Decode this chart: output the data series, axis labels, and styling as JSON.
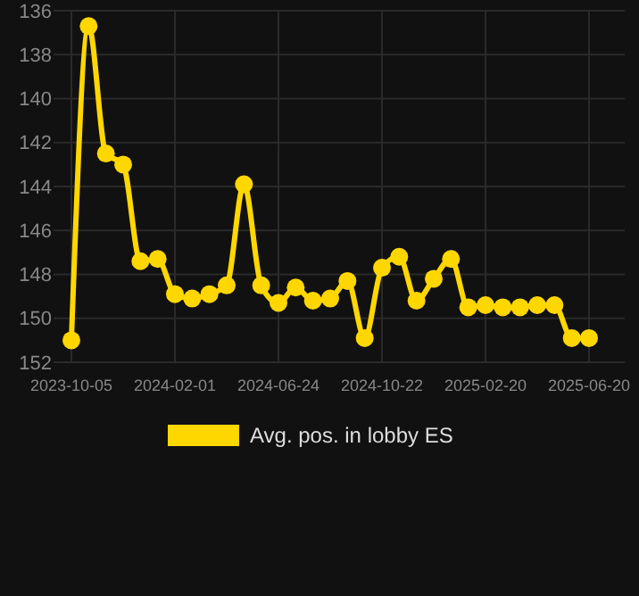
{
  "chart_data": {
    "type": "line",
    "categories": [
      "2023-10-05",
      null,
      null,
      null,
      null,
      null,
      "2024-02-01",
      null,
      null,
      null,
      null,
      null,
      "2024-06-24",
      null,
      null,
      null,
      null,
      null,
      "2024-10-22",
      null,
      null,
      null,
      null,
      null,
      "2025-02-20",
      null,
      null,
      null,
      null,
      null,
      "2025-06-20"
    ],
    "series": [
      {
        "name": "Avg. pos. in lobby ES",
        "color": "#ffd700",
        "values": [
          151.0,
          136.7,
          142.5,
          143.0,
          147.4,
          147.3,
          148.9,
          149.1,
          148.9,
          148.5,
          143.9,
          148.5,
          149.3,
          148.6,
          149.2,
          149.1,
          148.3,
          150.9,
          147.7,
          147.2,
          149.2,
          148.2,
          147.3,
          149.5,
          149.4,
          149.5,
          149.5,
          149.4,
          149.4,
          150.9,
          150.9
        ]
      }
    ],
    "ylim": [
      152,
      136
    ],
    "yticks": [
      136,
      138,
      140,
      142,
      144,
      146,
      148,
      150,
      152
    ],
    "grid": true,
    "legend": "bottom",
    "marker": "circle",
    "line_style": "solid"
  }
}
